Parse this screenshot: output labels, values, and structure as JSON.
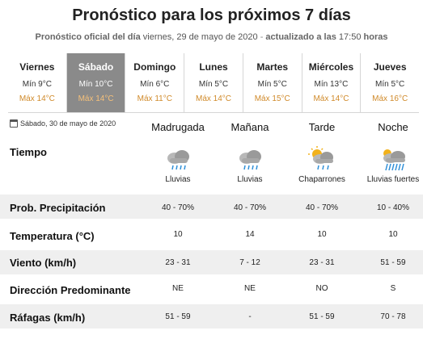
{
  "header": {
    "title": "Pronóstico para los próximos 7 días",
    "subtitle_prefix": "Pronóstico oficial del día",
    "subtitle_date": "viernes, 29 de mayo de 2020",
    "subtitle_sep": " - ",
    "subtitle_updated": "actualizado a las",
    "subtitle_time": "17:50",
    "subtitle_suffix": "horas"
  },
  "days": [
    {
      "name": "Viernes",
      "min": "Mín 9°C",
      "max": "Máx 14°C"
    },
    {
      "name": "Sábado",
      "min": "Mín 10°C",
      "max": "Máx 14°C"
    },
    {
      "name": "Domingo",
      "min": "Mín 6°C",
      "max": "Máx 11°C"
    },
    {
      "name": "Lunes",
      "min": "Mín 5°C",
      "max": "Máx 14°C"
    },
    {
      "name": "Martes",
      "min": "Mín 5°C",
      "max": "Máx 15°C"
    },
    {
      "name": "Miércoles",
      "min": "Mín 13°C",
      "max": "Máx 14°C"
    },
    {
      "name": "Jueves",
      "min": "Mín 5°C",
      "max": "Máx 16°C"
    }
  ],
  "selected_day": "Sábado",
  "detail": {
    "date": "Sábado, 30 de mayo de 2020",
    "periods": [
      "Madrugada",
      "Mañana",
      "Tarde",
      "Noche"
    ],
    "tiempo_label": "Tiempo",
    "weather": [
      {
        "icon": "rain-cloud-icon",
        "label": "Lluvias"
      },
      {
        "icon": "rain-cloud-icon",
        "label": "Lluvias"
      },
      {
        "icon": "sun-cloud-rain-icon",
        "label": "Chaparrones"
      },
      {
        "icon": "heavy-rain-cloud-icon",
        "label": "Lluvias fuertes"
      }
    ],
    "rows": [
      {
        "label": "Prob. Precipitación",
        "values": [
          "40 - 70%",
          "40 - 70%",
          "40 - 70%",
          "10 - 40%"
        ]
      },
      {
        "label": "Temperatura (°C)",
        "values": [
          "10",
          "14",
          "10",
          "10"
        ]
      },
      {
        "label": "Viento (km/h)",
        "values": [
          "23 - 31",
          "7 - 12",
          "23 - 31",
          "51 - 59"
        ]
      },
      {
        "label": "Dirección Predominante",
        "values": [
          "NE",
          "NE",
          "NO",
          "S"
        ]
      },
      {
        "label": "Ráfagas (km/h)",
        "values": [
          "51 - 59",
          "-",
          "51 - 59",
          "70 - 78"
        ]
      }
    ]
  },
  "colors": {
    "max_temp": "#d08a2a",
    "active_tab": "#8a8a8a",
    "band": "#efefef",
    "rain": "#2f8fd8",
    "sun": "#f2b21c"
  }
}
